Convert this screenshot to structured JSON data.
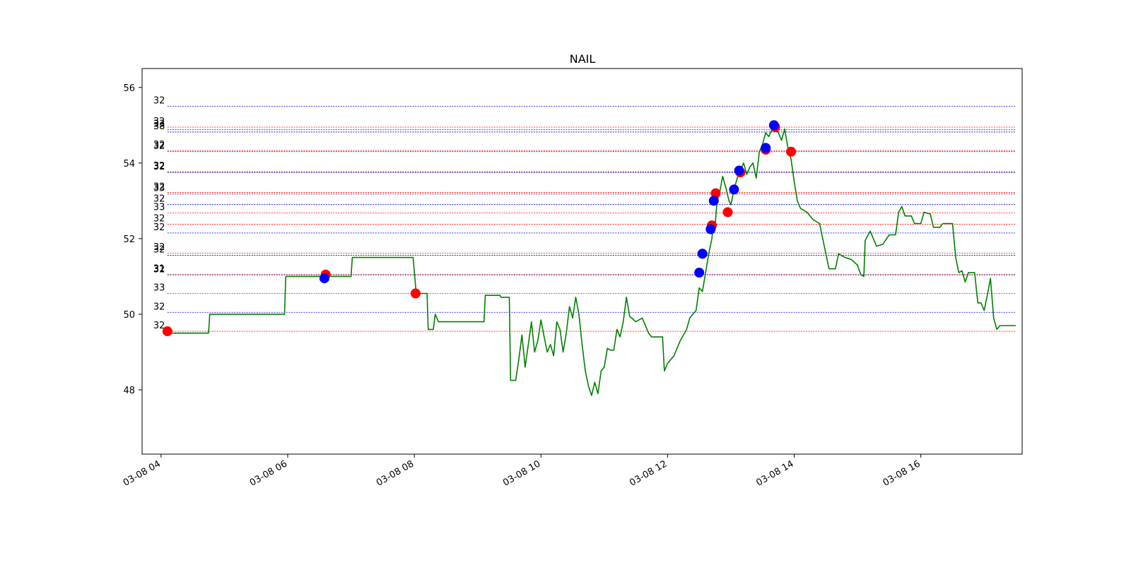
{
  "chart_data": {
    "type": "line",
    "title": "NAIL",
    "xlabel": "",
    "ylabel": "",
    "x_ticks": [
      {
        "label": "03-08 04",
        "hour": 4
      },
      {
        "label": "03-08 06",
        "hour": 6
      },
      {
        "label": "03-08 08",
        "hour": 8
      },
      {
        "label": "03-08 10",
        "hour": 10
      },
      {
        "label": "03-08 12",
        "hour": 12
      },
      {
        "label": "03-08 14",
        "hour": 14
      },
      {
        "label": "03-08 16",
        "hour": 16
      }
    ],
    "y_ticks": [
      48,
      50,
      52,
      54,
      56
    ],
    "xlim": [
      3.7,
      17.6
    ],
    "ylim": [
      46.3,
      56.5
    ],
    "grid": false,
    "colors": {
      "price": "#008000",
      "buy": "#ff0000",
      "sell": "#0000ff",
      "level_red": "#ff0000",
      "level_blue": "#0000cc"
    },
    "series": [
      {
        "color": "#008000",
        "points": [
          [
            4.1,
            49.5
          ],
          [
            4.75,
            49.5
          ],
          [
            4.77,
            50.0
          ],
          [
            5.95,
            50.0
          ],
          [
            5.97,
            51.0
          ],
          [
            7.0,
            51.0
          ],
          [
            7.02,
            51.5
          ],
          [
            7.98,
            51.5
          ],
          [
            8.03,
            50.55
          ],
          [
            8.2,
            50.55
          ],
          [
            8.22,
            49.6
          ],
          [
            8.3,
            49.6
          ],
          [
            8.33,
            50.0
          ],
          [
            8.38,
            49.8
          ],
          [
            9.1,
            49.8
          ],
          [
            9.12,
            50.5
          ],
          [
            9.35,
            50.5
          ],
          [
            9.37,
            50.45
          ],
          [
            9.5,
            50.45
          ],
          [
            9.52,
            48.25
          ],
          [
            9.6,
            48.25
          ],
          [
            9.65,
            48.8
          ],
          [
            9.7,
            49.45
          ],
          [
            9.75,
            48.6
          ],
          [
            9.8,
            49.2
          ],
          [
            9.85,
            49.8
          ],
          [
            9.9,
            49.0
          ],
          [
            9.95,
            49.3
          ],
          [
            10.0,
            49.85
          ],
          [
            10.05,
            49.4
          ],
          [
            10.1,
            49.0
          ],
          [
            10.15,
            49.2
          ],
          [
            10.2,
            48.9
          ],
          [
            10.25,
            49.8
          ],
          [
            10.3,
            49.6
          ],
          [
            10.35,
            49.0
          ],
          [
            10.4,
            49.5
          ],
          [
            10.45,
            50.2
          ],
          [
            10.5,
            49.9
          ],
          [
            10.55,
            50.45
          ],
          [
            10.6,
            50.0
          ],
          [
            10.65,
            49.2
          ],
          [
            10.7,
            48.5
          ],
          [
            10.75,
            48.1
          ],
          [
            10.8,
            47.85
          ],
          [
            10.85,
            48.2
          ],
          [
            10.9,
            47.9
          ],
          [
            10.95,
            48.5
          ],
          [
            11.0,
            48.6
          ],
          [
            11.05,
            49.1
          ],
          [
            11.1,
            49.05
          ],
          [
            11.15,
            49.05
          ],
          [
            11.2,
            49.6
          ],
          [
            11.25,
            49.4
          ],
          [
            11.3,
            49.8
          ],
          [
            11.35,
            50.45
          ],
          [
            11.4,
            49.95
          ],
          [
            11.5,
            49.8
          ],
          [
            11.6,
            49.9
          ],
          [
            11.7,
            49.5
          ],
          [
            11.75,
            49.4
          ],
          [
            11.92,
            49.4
          ],
          [
            11.95,
            48.5
          ],
          [
            12.0,
            48.7
          ],
          [
            12.1,
            48.9
          ],
          [
            12.2,
            49.3
          ],
          [
            12.3,
            49.6
          ],
          [
            12.35,
            49.9
          ],
          [
            12.45,
            50.1
          ],
          [
            12.5,
            50.7
          ],
          [
            12.55,
            50.6
          ],
          [
            12.6,
            51.1
          ],
          [
            12.65,
            51.6
          ],
          [
            12.7,
            52.0
          ],
          [
            12.72,
            52.35
          ],
          [
            12.75,
            52.3
          ],
          [
            12.78,
            53.0
          ],
          [
            12.82,
            53.2
          ],
          [
            12.87,
            53.65
          ],
          [
            12.92,
            53.35
          ],
          [
            12.97,
            53.0
          ],
          [
            13.0,
            52.9
          ],
          [
            13.05,
            53.3
          ],
          [
            13.1,
            53.6
          ],
          [
            13.15,
            53.8
          ],
          [
            13.2,
            54.0
          ],
          [
            13.25,
            53.7
          ],
          [
            13.3,
            53.9
          ],
          [
            13.35,
            54.0
          ],
          [
            13.4,
            53.6
          ],
          [
            13.45,
            54.3
          ],
          [
            13.5,
            54.5
          ],
          [
            13.55,
            54.8
          ],
          [
            13.6,
            54.7
          ],
          [
            13.65,
            54.9
          ],
          [
            13.7,
            55.0
          ],
          [
            13.75,
            54.8
          ],
          [
            13.8,
            54.6
          ],
          [
            13.85,
            54.9
          ],
          [
            13.9,
            54.4
          ],
          [
            13.95,
            54.1
          ],
          [
            14.0,
            53.5
          ],
          [
            14.05,
            53.0
          ],
          [
            14.1,
            52.8
          ],
          [
            14.2,
            52.7
          ],
          [
            14.3,
            52.5
          ],
          [
            14.4,
            52.4
          ],
          [
            14.45,
            52.0
          ],
          [
            14.5,
            51.6
          ],
          [
            14.55,
            51.2
          ],
          [
            14.65,
            51.2
          ],
          [
            14.7,
            51.6
          ],
          [
            14.8,
            51.5
          ],
          [
            14.9,
            51.45
          ],
          [
            15.0,
            51.3
          ],
          [
            15.05,
            51.05
          ],
          [
            15.1,
            51.0
          ],
          [
            15.12,
            51.95
          ],
          [
            15.2,
            52.2
          ],
          [
            15.3,
            51.8
          ],
          [
            15.4,
            51.85
          ],
          [
            15.5,
            52.1
          ],
          [
            15.6,
            52.1
          ],
          [
            15.65,
            52.7
          ],
          [
            15.7,
            52.85
          ],
          [
            15.75,
            52.6
          ],
          [
            15.85,
            52.6
          ],
          [
            15.9,
            52.4
          ],
          [
            16.0,
            52.4
          ],
          [
            16.05,
            52.7
          ],
          [
            16.15,
            52.65
          ],
          [
            16.2,
            52.3
          ],
          [
            16.3,
            52.3
          ],
          [
            16.35,
            52.4
          ],
          [
            16.5,
            52.4
          ],
          [
            16.55,
            51.5
          ],
          [
            16.6,
            51.1
          ],
          [
            16.65,
            51.15
          ],
          [
            16.7,
            50.85
          ],
          [
            16.75,
            51.1
          ],
          [
            16.85,
            51.1
          ],
          [
            16.9,
            50.3
          ],
          [
            16.95,
            50.3
          ],
          [
            17.0,
            50.1
          ],
          [
            17.05,
            50.5
          ],
          [
            17.1,
            50.95
          ],
          [
            17.15,
            49.9
          ],
          [
            17.2,
            49.6
          ],
          [
            17.25,
            49.7
          ],
          [
            17.5,
            49.7
          ]
        ]
      }
    ],
    "buy_markers": [
      [
        4.1,
        49.55
      ],
      [
        6.6,
        51.05
      ],
      [
        8.02,
        50.55
      ],
      [
        12.55,
        51.6
      ],
      [
        12.7,
        52.35
      ],
      [
        12.76,
        53.2
      ],
      [
        12.95,
        52.7
      ],
      [
        13.15,
        53.75
      ],
      [
        13.55,
        54.35
      ],
      [
        13.7,
        54.95
      ],
      [
        13.95,
        54.3
      ]
    ],
    "sell_markers": [
      [
        6.58,
        50.95
      ],
      [
        12.5,
        51.1
      ],
      [
        12.55,
        51.6
      ],
      [
        12.68,
        52.25
      ],
      [
        12.73,
        53.0
      ],
      [
        13.05,
        53.3
      ],
      [
        13.13,
        53.8
      ],
      [
        13.55,
        54.4
      ],
      [
        13.68,
        55.0
      ]
    ],
    "levels": [
      {
        "y": 55.5,
        "color": "blue",
        "label": "32"
      },
      {
        "y": 54.95,
        "color": "red",
        "label": "32"
      },
      {
        "y": 54.88,
        "color": "blue",
        "label": "33"
      },
      {
        "y": 54.82,
        "color": "blue",
        "label": "38"
      },
      {
        "y": 54.33,
        "color": "red",
        "label": "32"
      },
      {
        "y": 54.3,
        "color": "blue",
        "label": "32"
      },
      {
        "y": 53.77,
        "color": "red",
        "label": "32"
      },
      {
        "y": 53.75,
        "color": "blue",
        "label": "32"
      },
      {
        "y": 53.22,
        "color": "red",
        "label": "32"
      },
      {
        "y": 53.18,
        "color": "blue",
        "label": "33"
      },
      {
        "y": 52.9,
        "color": "blue",
        "label": "32"
      },
      {
        "y": 52.68,
        "color": "red",
        "label": "33"
      },
      {
        "y": 52.38,
        "color": "red",
        "label": "32"
      },
      {
        "y": 52.15,
        "color": "blue",
        "label": "32"
      },
      {
        "y": 51.62,
        "color": "red",
        "label": "32"
      },
      {
        "y": 51.56,
        "color": "blue",
        "label": "32"
      },
      {
        "y": 51.05,
        "color": "red",
        "label": "31"
      },
      {
        "y": 51.04,
        "color": "blue",
        "label": "32"
      },
      {
        "y": 50.55,
        "color": "red",
        "label": "33"
      },
      {
        "y": 50.05,
        "color": "blue",
        "label": "32"
      },
      {
        "y": 49.55,
        "color": "red",
        "label": "32"
      }
    ]
  }
}
